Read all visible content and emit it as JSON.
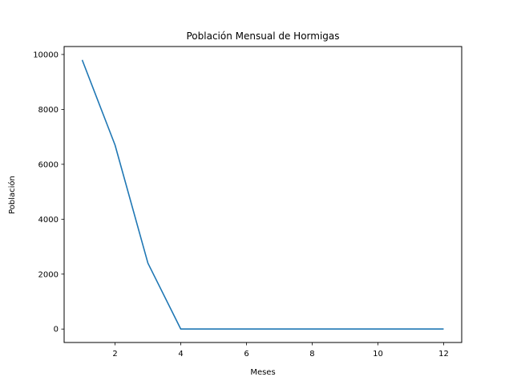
{
  "chart_data": {
    "type": "line",
    "title": "Población Mensual de Hormigas",
    "xlabel": "Meses",
    "ylabel": "Población",
    "xlim": [
      0.45,
      12.55
    ],
    "ylim": [
      -490,
      10290
    ],
    "xticks": [
      2,
      4,
      6,
      8,
      10,
      12
    ],
    "yticks": [
      0,
      2000,
      4000,
      6000,
      8000,
      10000
    ],
    "grid": false,
    "series": [
      {
        "x": [
          1,
          2,
          3,
          4,
          5,
          6,
          7,
          8,
          9,
          10,
          11,
          12
        ],
        "values": [
          9800,
          6700,
          2400,
          0,
          0,
          0,
          0,
          0,
          0,
          0,
          0,
          0
        ],
        "color": "#1f77b4"
      }
    ]
  }
}
